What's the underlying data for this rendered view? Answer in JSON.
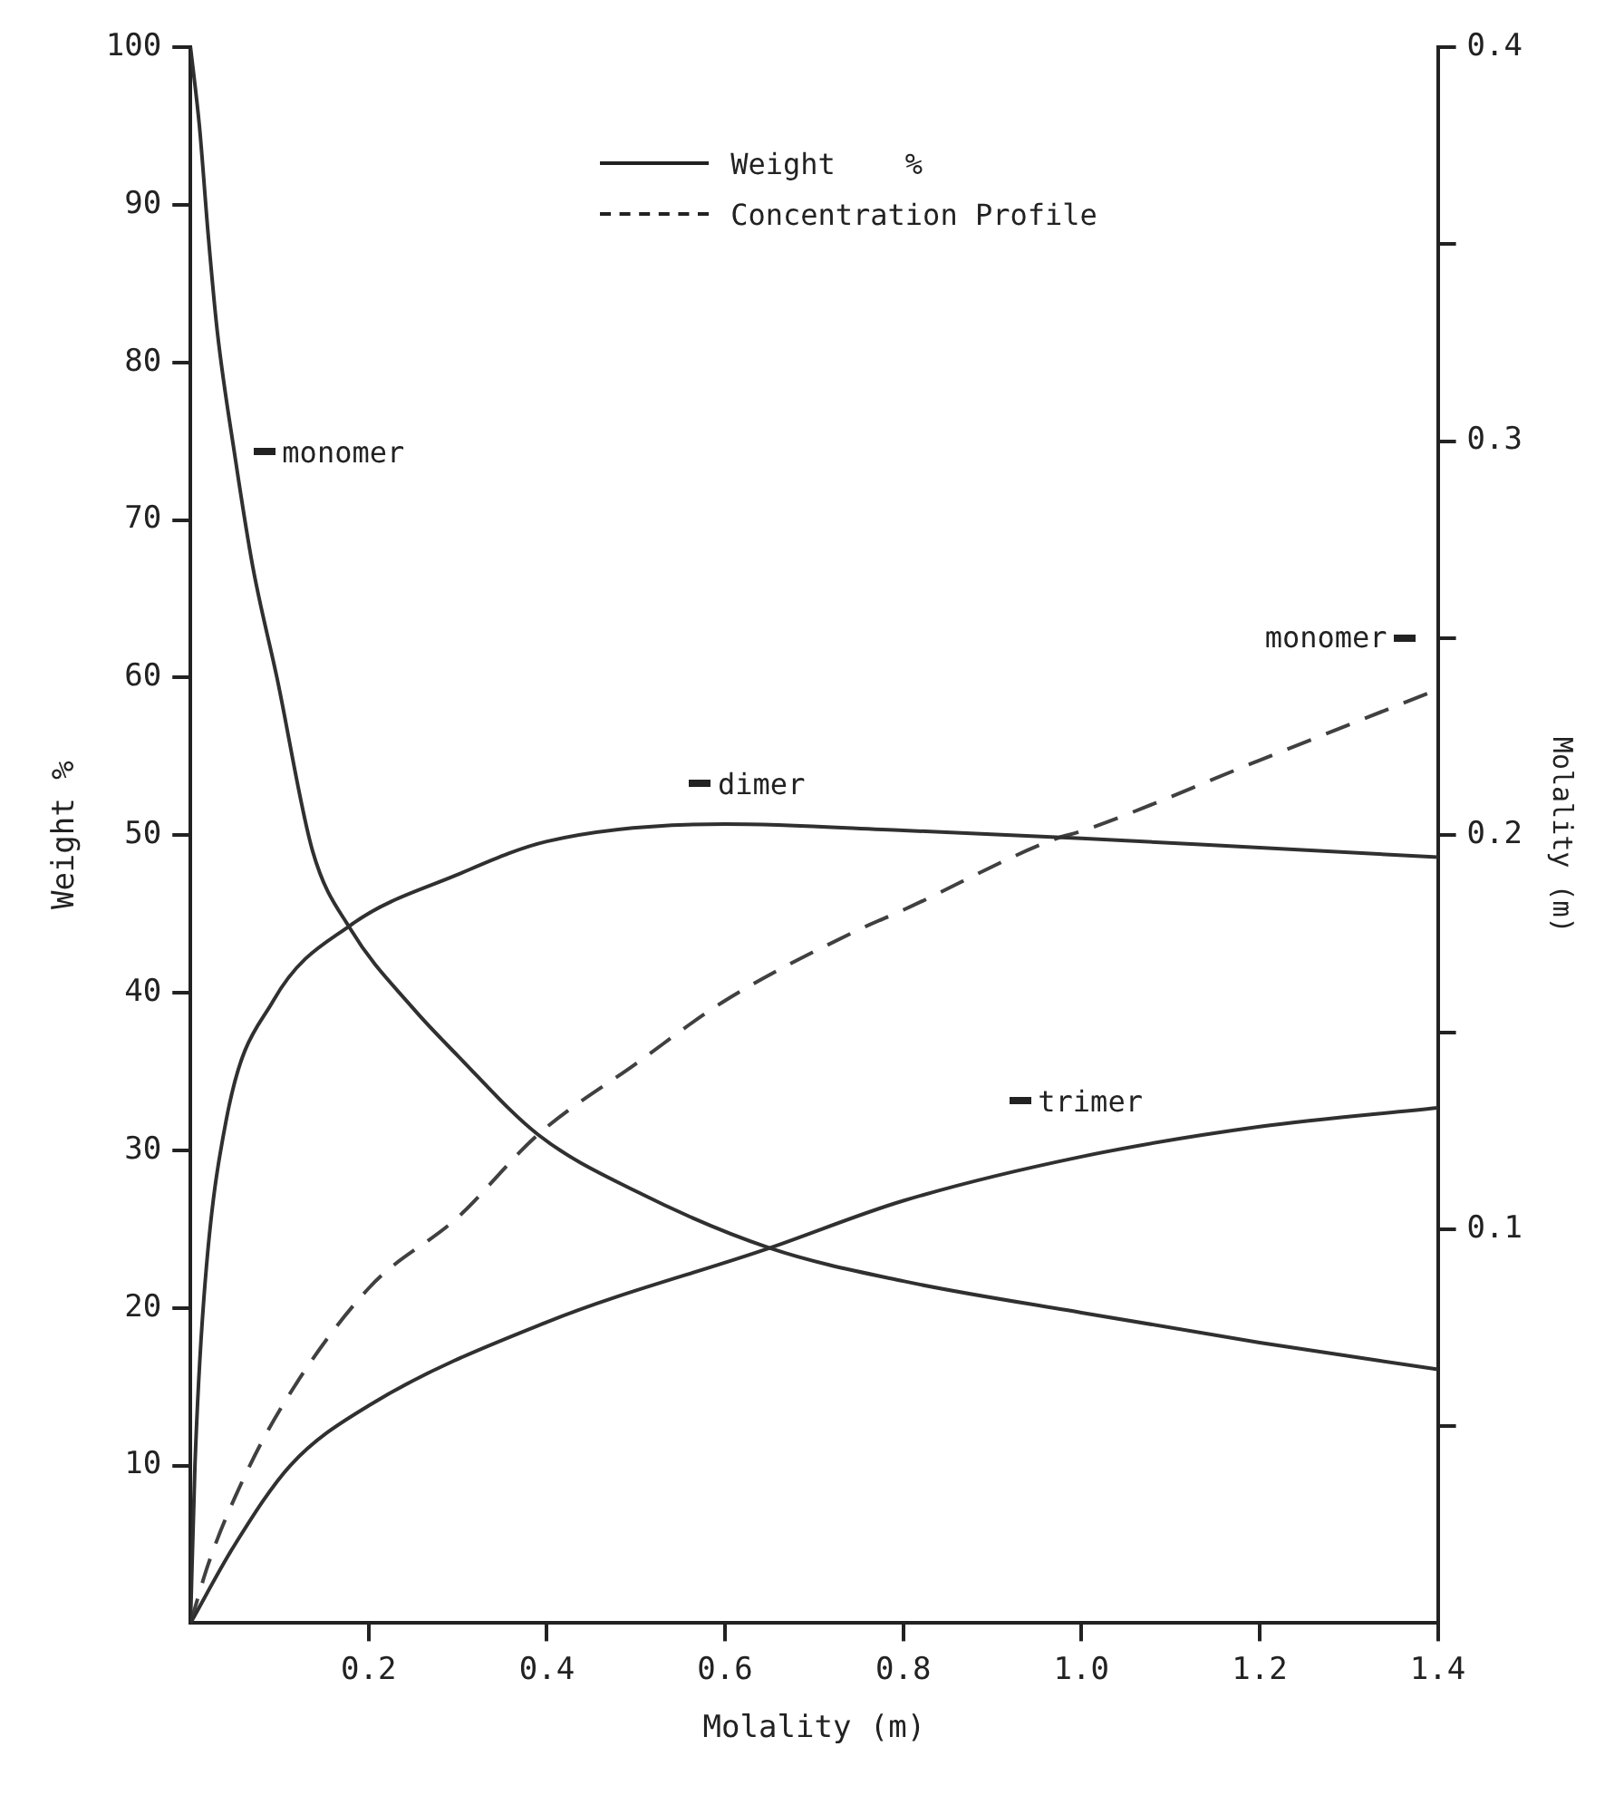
{
  "chart_data": {
    "type": "line",
    "xlabel": "Molality (m)",
    "ylabel": "Weight %",
    "y2label": "Molality (m)",
    "annotations": [
      "Weight    %",
      "Concentration Profile"
    ],
    "xlim": [
      0,
      1.4
    ],
    "xticks": [
      0.2,
      0.4,
      0.6,
      0.8,
      {
        "value": 1,
        "label": "1.0"
      },
      1.2,
      1.4
    ],
    "ylim": [
      0,
      100
    ],
    "yticks": [
      10,
      20,
      30,
      40,
      50,
      60,
      70,
      80,
      90,
      100
    ],
    "y2lim": [
      0,
      0.4
    ],
    "y2ticks": [
      {
        "value": 0.05,
        "label": null
      },
      0.1,
      {
        "value": 0.15,
        "label": null
      },
      0.2,
      {
        "value": 0.25,
        "label": null
      },
      0.3,
      {
        "value": 0.35,
        "label": null
      },
      0.4
    ],
    "grid": false,
    "legend": "top",
    "marker": "none",
    "series": [
      {
        "name": "monomer",
        "color": "#303030",
        "line_style": "solid",
        "x": [
          0,
          0.01,
          0.02,
          0.03,
          0.05,
          0.07,
          0.097,
          0.137,
          0.18,
          0.25,
          0.3,
          0.39,
          0.5,
          0.65,
          0.8,
          1.0,
          1.2,
          1.4
        ],
        "values": [
          100,
          95,
          88,
          82,
          74,
          67,
          60,
          49,
          44,
          39,
          36,
          31,
          27.4,
          23.8,
          21.7,
          19.7,
          17.8,
          16.1
        ]
      },
      {
        "name": "dimer",
        "color": "#303030",
        "line_style": "solid",
        "x": [
          0,
          0.005,
          0.015,
          0.04,
          0.093,
          0.18,
          0.3,
          0.4,
          0.6,
          0.8,
          1.0,
          1.2,
          1.4
        ],
        "values": [
          0,
          10,
          20.6,
          31.9,
          39.5,
          44.3,
          47.5,
          49.6,
          50.7,
          50.3,
          49.8,
          49.2,
          48.6
        ]
      },
      {
        "name": "trimer",
        "color": "#303030",
        "line_style": "solid",
        "x": [
          0,
          0.05,
          0.112,
          0.2,
          0.4,
          0.65,
          0.8,
          1.0,
          1.2,
          1.4
        ],
        "values": [
          0,
          5,
          10,
          13.8,
          19.1,
          23.8,
          26.8,
          29.6,
          31.5,
          32.7
        ]
      },
      {
        "name": "monomer",
        "color": "#404040",
        "line_style": "dashed",
        "axis": "y2",
        "x": [
          0,
          0.02,
          0.05,
          0.1,
          0.2,
          0.3,
          0.39,
          0.5,
          0.6,
          0.75,
          0.8,
          0.97,
          1.0,
          1.2,
          1.4
        ],
        "values": [
          0,
          0.015,
          0.032,
          0.054,
          0.085,
          0.103,
          0.124,
          0.142,
          0.158,
          0.176,
          0.181,
          0.199,
          0.201,
          0.219,
          0.237
        ]
      }
    ]
  }
}
